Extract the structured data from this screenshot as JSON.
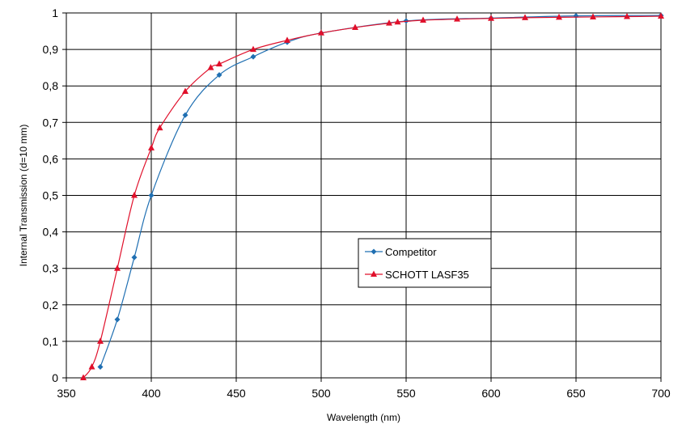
{
  "chart_data": {
    "type": "line",
    "title": "",
    "xlabel": "Wavelength (nm)",
    "ylabel": "Internal Transmission (d=10 mm)",
    "xlim": [
      350,
      700
    ],
    "ylim": [
      0,
      1
    ],
    "x_ticks": [
      350,
      400,
      450,
      500,
      550,
      600,
      650,
      700
    ],
    "x_tick_labels": [
      "350",
      "400",
      "450",
      "500",
      "550",
      "600",
      "650",
      "700"
    ],
    "y_ticks": [
      0,
      0.1,
      0.2,
      0.3,
      0.4,
      0.5,
      0.6,
      0.7,
      0.8,
      0.9,
      1
    ],
    "y_tick_labels": [
      "0",
      "0,1",
      "0,2",
      "0,3",
      "0,4",
      "0,5",
      "0,6",
      "0,7",
      "0,8",
      "0,9",
      "1"
    ],
    "grid": true,
    "legend_position": "center-right",
    "series": [
      {
        "name": "Competitor",
        "color": "#1f6fb2",
        "marker": "diamond",
        "x": [
          370,
          380,
          390,
          400,
          420,
          440,
          460,
          480,
          500,
          550,
          600,
          650,
          700
        ],
        "y": [
          0.03,
          0.16,
          0.33,
          0.5,
          0.72,
          0.83,
          0.88,
          0.92,
          0.945,
          0.978,
          0.986,
          0.992,
          0.993
        ]
      },
      {
        "name": "SCHOTT LASF35",
        "color": "#e0102b",
        "marker": "triangle",
        "x": [
          360,
          365,
          370,
          380,
          390,
          400,
          405,
          420,
          435,
          440,
          460,
          480,
          500,
          520,
          540,
          545,
          560,
          580,
          600,
          620,
          640,
          660,
          680,
          700
        ],
        "y": [
          0,
          0.03,
          0.1,
          0.3,
          0.5,
          0.63,
          0.685,
          0.785,
          0.85,
          0.86,
          0.9,
          0.925,
          0.945,
          0.96,
          0.972,
          0.975,
          0.98,
          0.983,
          0.985,
          0.987,
          0.988,
          0.989,
          0.99,
          0.991
        ]
      }
    ]
  }
}
